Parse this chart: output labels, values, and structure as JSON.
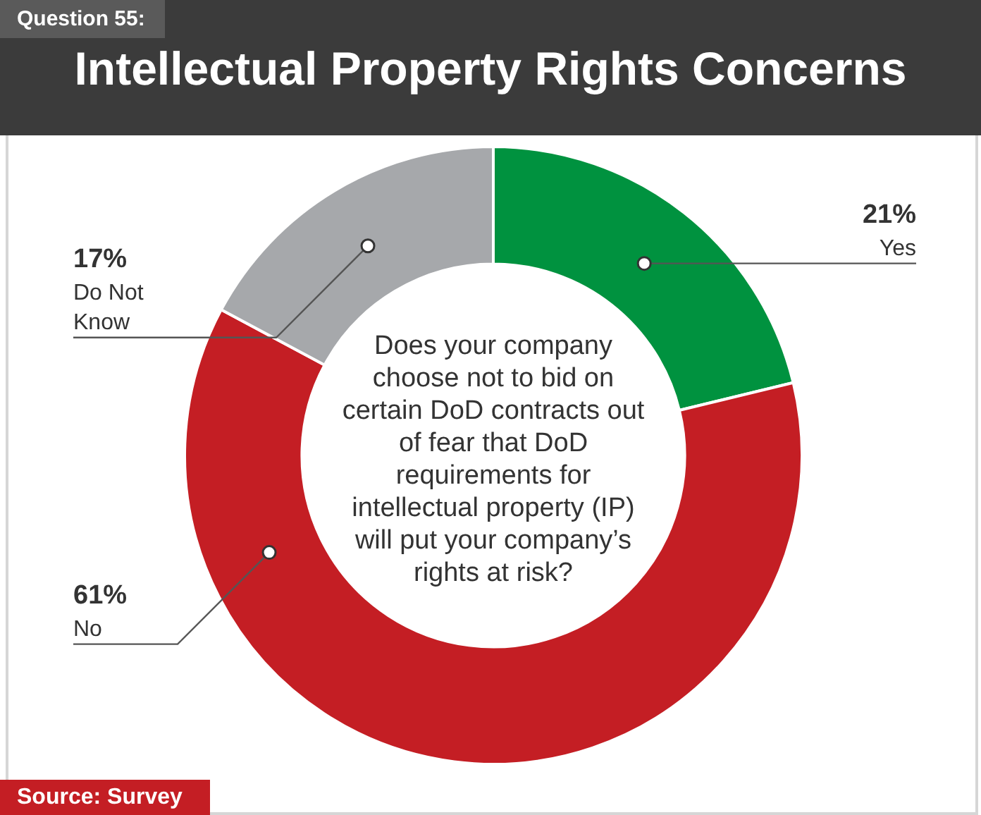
{
  "chart_data": {
    "type": "donut",
    "title": "Intellectual Property Rights Concerns",
    "categories": [
      "Yes",
      "No",
      "Do Not Know"
    ],
    "values": [
      21,
      61,
      17
    ],
    "value_labels": [
      "21%",
      "61%",
      "17%"
    ],
    "colors": [
      "#00923f",
      "#c41e24",
      "#a6a8ab"
    ],
    "legend": false,
    "annotations": [
      "Question 55:",
      "Does your company choose not to bid on certain DoD contracts out of fear that DoD requirements for intellectual property (IP) will put your company’s rights at risk?",
      "Source: Survey"
    ]
  }
}
